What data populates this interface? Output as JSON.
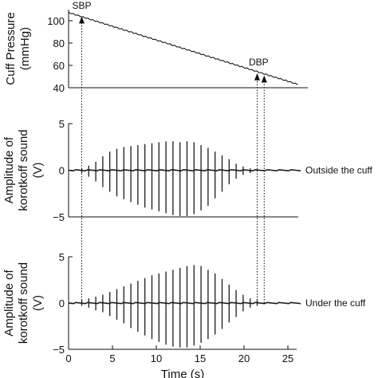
{
  "chart_data": [
    {
      "type": "line",
      "name": "cuff-pressure",
      "ylabel_lines": [
        "Cuff Pressure",
        "(mmHg)"
      ],
      "xlim": [
        0,
        26
      ],
      "ylim": [
        40,
        110
      ],
      "yticks": [
        40,
        60,
        80,
        100
      ],
      "series": [
        {
          "x": [
            0,
            26
          ],
          "values": [
            107,
            43
          ]
        }
      ],
      "annotations": [
        {
          "text": "SBP",
          "x": 1.5,
          "y": 105
        },
        {
          "text": "DBP",
          "x": 22.0,
          "y": 50
        }
      ]
    },
    {
      "type": "line",
      "name": "korotkoff-outside",
      "ylabel_lines": [
        "Amplitude of",
        "korotkoff sound",
        "(V)"
      ],
      "xlim": [
        0,
        26
      ],
      "ylim": [
        -5,
        5
      ],
      "yticks": [
        -5,
        0,
        5
      ],
      "side_label": "Outside the cuff",
      "beat_times": [
        1.5,
        2.3,
        3.1,
        3.9,
        4.7,
        5.5,
        6.3,
        7.1,
        7.9,
        8.7,
        9.5,
        10.3,
        11.1,
        11.9,
        12.7,
        13.5,
        14.3,
        15.1,
        15.9,
        16.7,
        17.5,
        18.3,
        19.1,
        19.9,
        20.7,
        21.5
      ],
      "positive_peaks": [
        0.2,
        0.5,
        0.9,
        1.5,
        2.0,
        2.3,
        2.5,
        2.6,
        2.7,
        2.8,
        2.9,
        3.0,
        3.1,
        3.1,
        3.0,
        3.1,
        3.0,
        2.7,
        2.4,
        2.0,
        1.6,
        1.2,
        0.7,
        0.4,
        0.2,
        0.1
      ],
      "negative_peaks": [
        -0.3,
        -0.7,
        -1.2,
        -1.8,
        -2.3,
        -2.8,
        -3.1,
        -3.4,
        -3.7,
        -4.0,
        -4.2,
        -4.4,
        -4.6,
        -4.8,
        -4.9,
        -4.9,
        -4.7,
        -4.3,
        -3.8,
        -3.0,
        -2.3,
        -1.5,
        -0.9,
        -0.5,
        -0.3,
        -0.1
      ]
    },
    {
      "type": "line",
      "name": "korotkoff-under",
      "ylabel_lines": [
        "Amplitude of",
        "korotkoff sound",
        "(V)"
      ],
      "xlim": [
        0,
        26
      ],
      "ylim": [
        -5,
        5
      ],
      "yticks": [
        -5,
        0,
        5
      ],
      "xticks": [
        0,
        5,
        10,
        15,
        20,
        25
      ],
      "xlabel": "Time (s)",
      "side_label": "Under the cuff",
      "beat_times": [
        1.5,
        2.3,
        3.1,
        3.9,
        4.7,
        5.5,
        6.3,
        7.1,
        7.9,
        8.7,
        9.5,
        10.3,
        11.1,
        11.9,
        12.7,
        13.5,
        14.3,
        15.1,
        15.9,
        16.7,
        17.5,
        18.3,
        19.1,
        19.9,
        20.7,
        21.5,
        22.3
      ],
      "positive_peaks": [
        0.3,
        0.5,
        0.7,
        0.9,
        1.2,
        1.5,
        1.8,
        2.1,
        2.4,
        2.7,
        3.0,
        3.2,
        3.4,
        3.6,
        3.8,
        4.0,
        4.1,
        4.0,
        3.6,
        3.2,
        2.6,
        2.0,
        1.4,
        0.9,
        0.5,
        0.3,
        0.1
      ],
      "negative_peaks": [
        -0.3,
        -0.5,
        -0.8,
        -1.0,
        -1.4,
        -1.8,
        -2.2,
        -2.7,
        -3.1,
        -3.5,
        -3.9,
        -4.2,
        -4.5,
        -4.7,
        -4.8,
        -4.8,
        -4.6,
        -4.3,
        -3.9,
        -3.4,
        -2.8,
        -2.1,
        -1.5,
        -0.9,
        -0.5,
        -0.3,
        -0.1
      ]
    }
  ],
  "markers": {
    "sbp_time": 1.5,
    "dbp_times": [
      21.5,
      22.3
    ]
  },
  "colors": {
    "axis": "#111111",
    "trace": "#1a1a1a"
  }
}
